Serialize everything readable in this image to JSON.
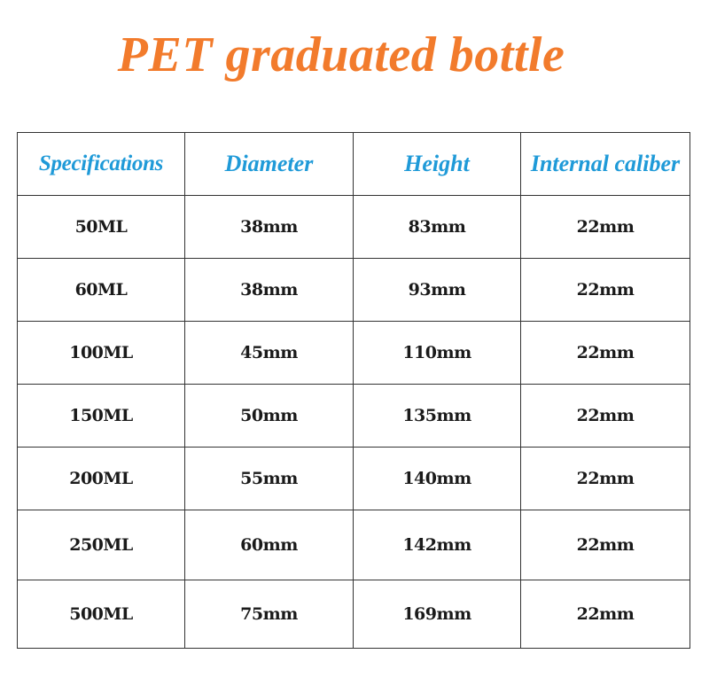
{
  "title": "PET graduated bottle",
  "table": {
    "headers": {
      "specifications": "Specifications",
      "diameter": "Diameter",
      "height": "Height",
      "internal_caliber": "Internal caliber"
    },
    "rows": [
      {
        "spec": "50ML",
        "diameter": "38mm",
        "height": "83mm",
        "caliber": "22mm"
      },
      {
        "spec": "60ML",
        "diameter": "38mm",
        "height": "93mm",
        "caliber": "22mm"
      },
      {
        "spec": "100ML",
        "diameter": "45mm",
        "height": "110mm",
        "caliber": "22mm"
      },
      {
        "spec": "150ML",
        "diameter": "50mm",
        "height": "135mm",
        "caliber": "22mm"
      },
      {
        "spec": "200ML",
        "diameter": "55mm",
        "height": "140mm",
        "caliber": "22mm"
      },
      {
        "spec": "250ML",
        "diameter": "60mm",
        "height": "142mm",
        "caliber": "22mm"
      },
      {
        "spec": "500ML",
        "diameter": "75mm",
        "height": "169mm",
        "caliber": "22mm"
      }
    ]
  },
  "colors": {
    "title": "#f27b2c",
    "header_text": "#1f9ad8",
    "cell_text": "#1a1a1a",
    "border": "#333333"
  }
}
